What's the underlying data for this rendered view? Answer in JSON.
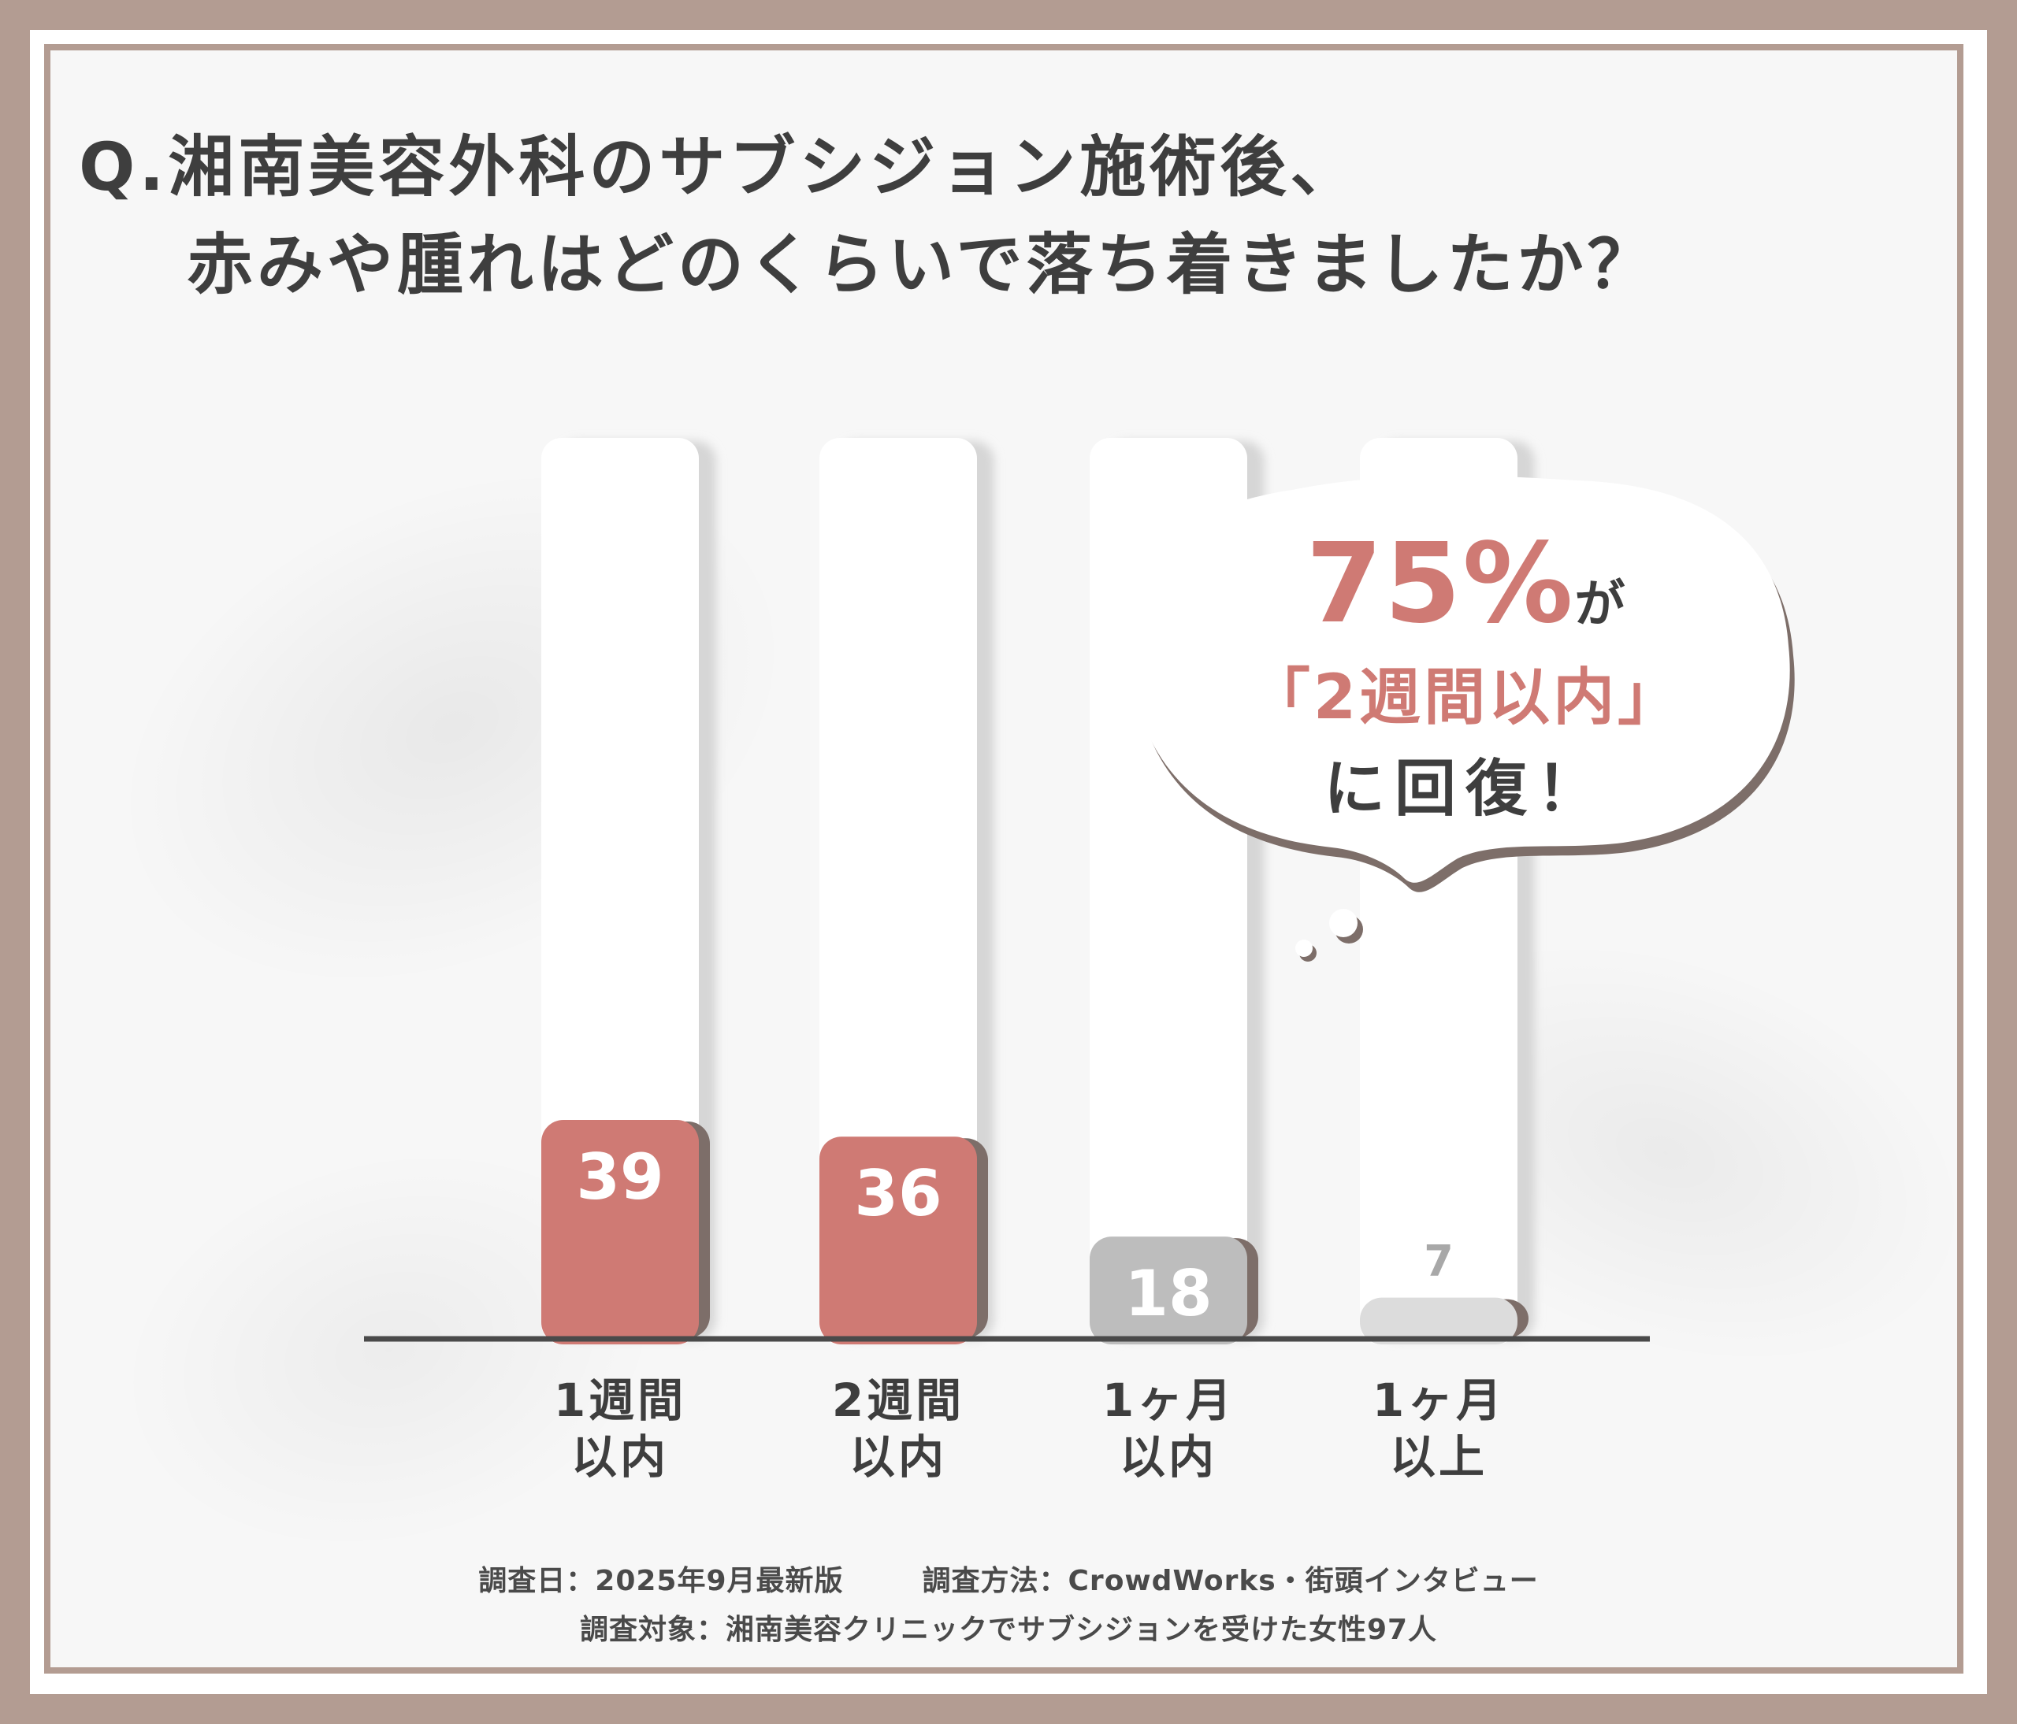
{
  "title": {
    "line1": "Q.湘南美容外科のサブシジョン施術後、",
    "line2": "赤みや腫れはどのくらいで落ち着きましたか？"
  },
  "callout": {
    "percent": "75%",
    "suffix": "が",
    "line2": "「2週間以内」",
    "line3": "に回復！"
  },
  "chart_data": {
    "type": "bar",
    "categories": [
      "1週間以内",
      "2週間以内",
      "1ヶ月以内",
      "1ヶ月以上"
    ],
    "category_lines": [
      [
        "1週間",
        "以内"
      ],
      [
        "2週間",
        "以内"
      ],
      [
        "1ヶ月",
        "以内"
      ],
      [
        "1ヶ月",
        "以上"
      ]
    ],
    "values": [
      39,
      36,
      18,
      7
    ],
    "value_labels": [
      "39",
      "36",
      "18",
      "7"
    ],
    "colors": [
      "#cf7a74",
      "#cf7a74",
      "#bdbdbd",
      "#dcdcdc"
    ],
    "label_colors": [
      "#ffffff",
      "#ffffff",
      "#ffffff",
      "#a8a8a8"
    ],
    "ylim": [
      0,
      100
    ]
  },
  "notes": {
    "line1_left": "調査日：2025年9月最新版",
    "line1_right": "調査方法：CrowdWorks・街頭インタビュー",
    "line2": "調査対象：湘南美容クリニックでサブシジョンを受けた女性97人"
  }
}
